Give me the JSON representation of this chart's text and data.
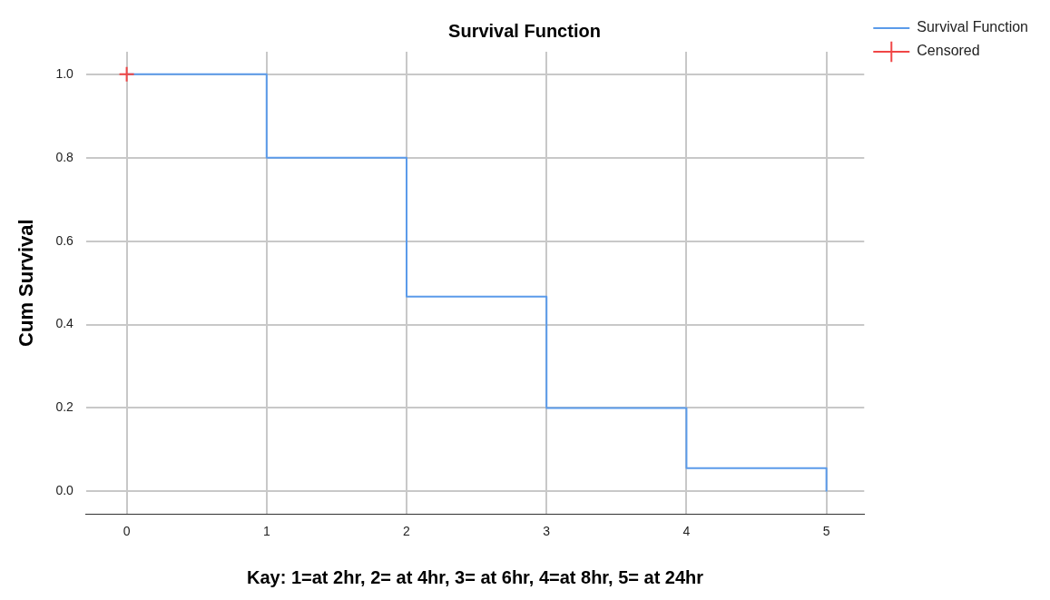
{
  "chart_data": {
    "type": "step",
    "title": "Survival Function",
    "xlabel": "Kay: 1=at 2hr, 2= at 4hr, 3= at 6hr, 4=at 8hr, 5= at 24hr",
    "ylabel": "Cum Survival",
    "series": [
      {
        "name": "Survival Function",
        "color": "#5b9bea",
        "x": [
          0,
          1,
          2,
          3,
          4,
          5
        ],
        "values": [
          1,
          0.8,
          0.467,
          0.2,
          0.056,
          0
        ]
      },
      {
        "name": "Censored",
        "type": "scatter",
        "color": "#f04646",
        "marker": "cross",
        "x": [
          0
        ],
        "values": [
          1
        ]
      }
    ],
    "xlim": [
      -0.29,
      5.27
    ],
    "xticks": [
      0,
      1,
      2,
      3,
      4,
      5
    ],
    "ylim": [
      -0.054,
      1.054
    ],
    "yticks": [
      {
        "value": 0,
        "label": "0.0"
      },
      {
        "value": 0.2,
        "label": "0.2"
      },
      {
        "value": 0.4,
        "label": "0.4"
      },
      {
        "value": 0.6,
        "label": "0.6"
      },
      {
        "value": 0.8,
        "label": "0.8"
      },
      {
        "value": 1,
        "label": "1.0"
      }
    ],
    "grid": true,
    "legend": "top right"
  }
}
